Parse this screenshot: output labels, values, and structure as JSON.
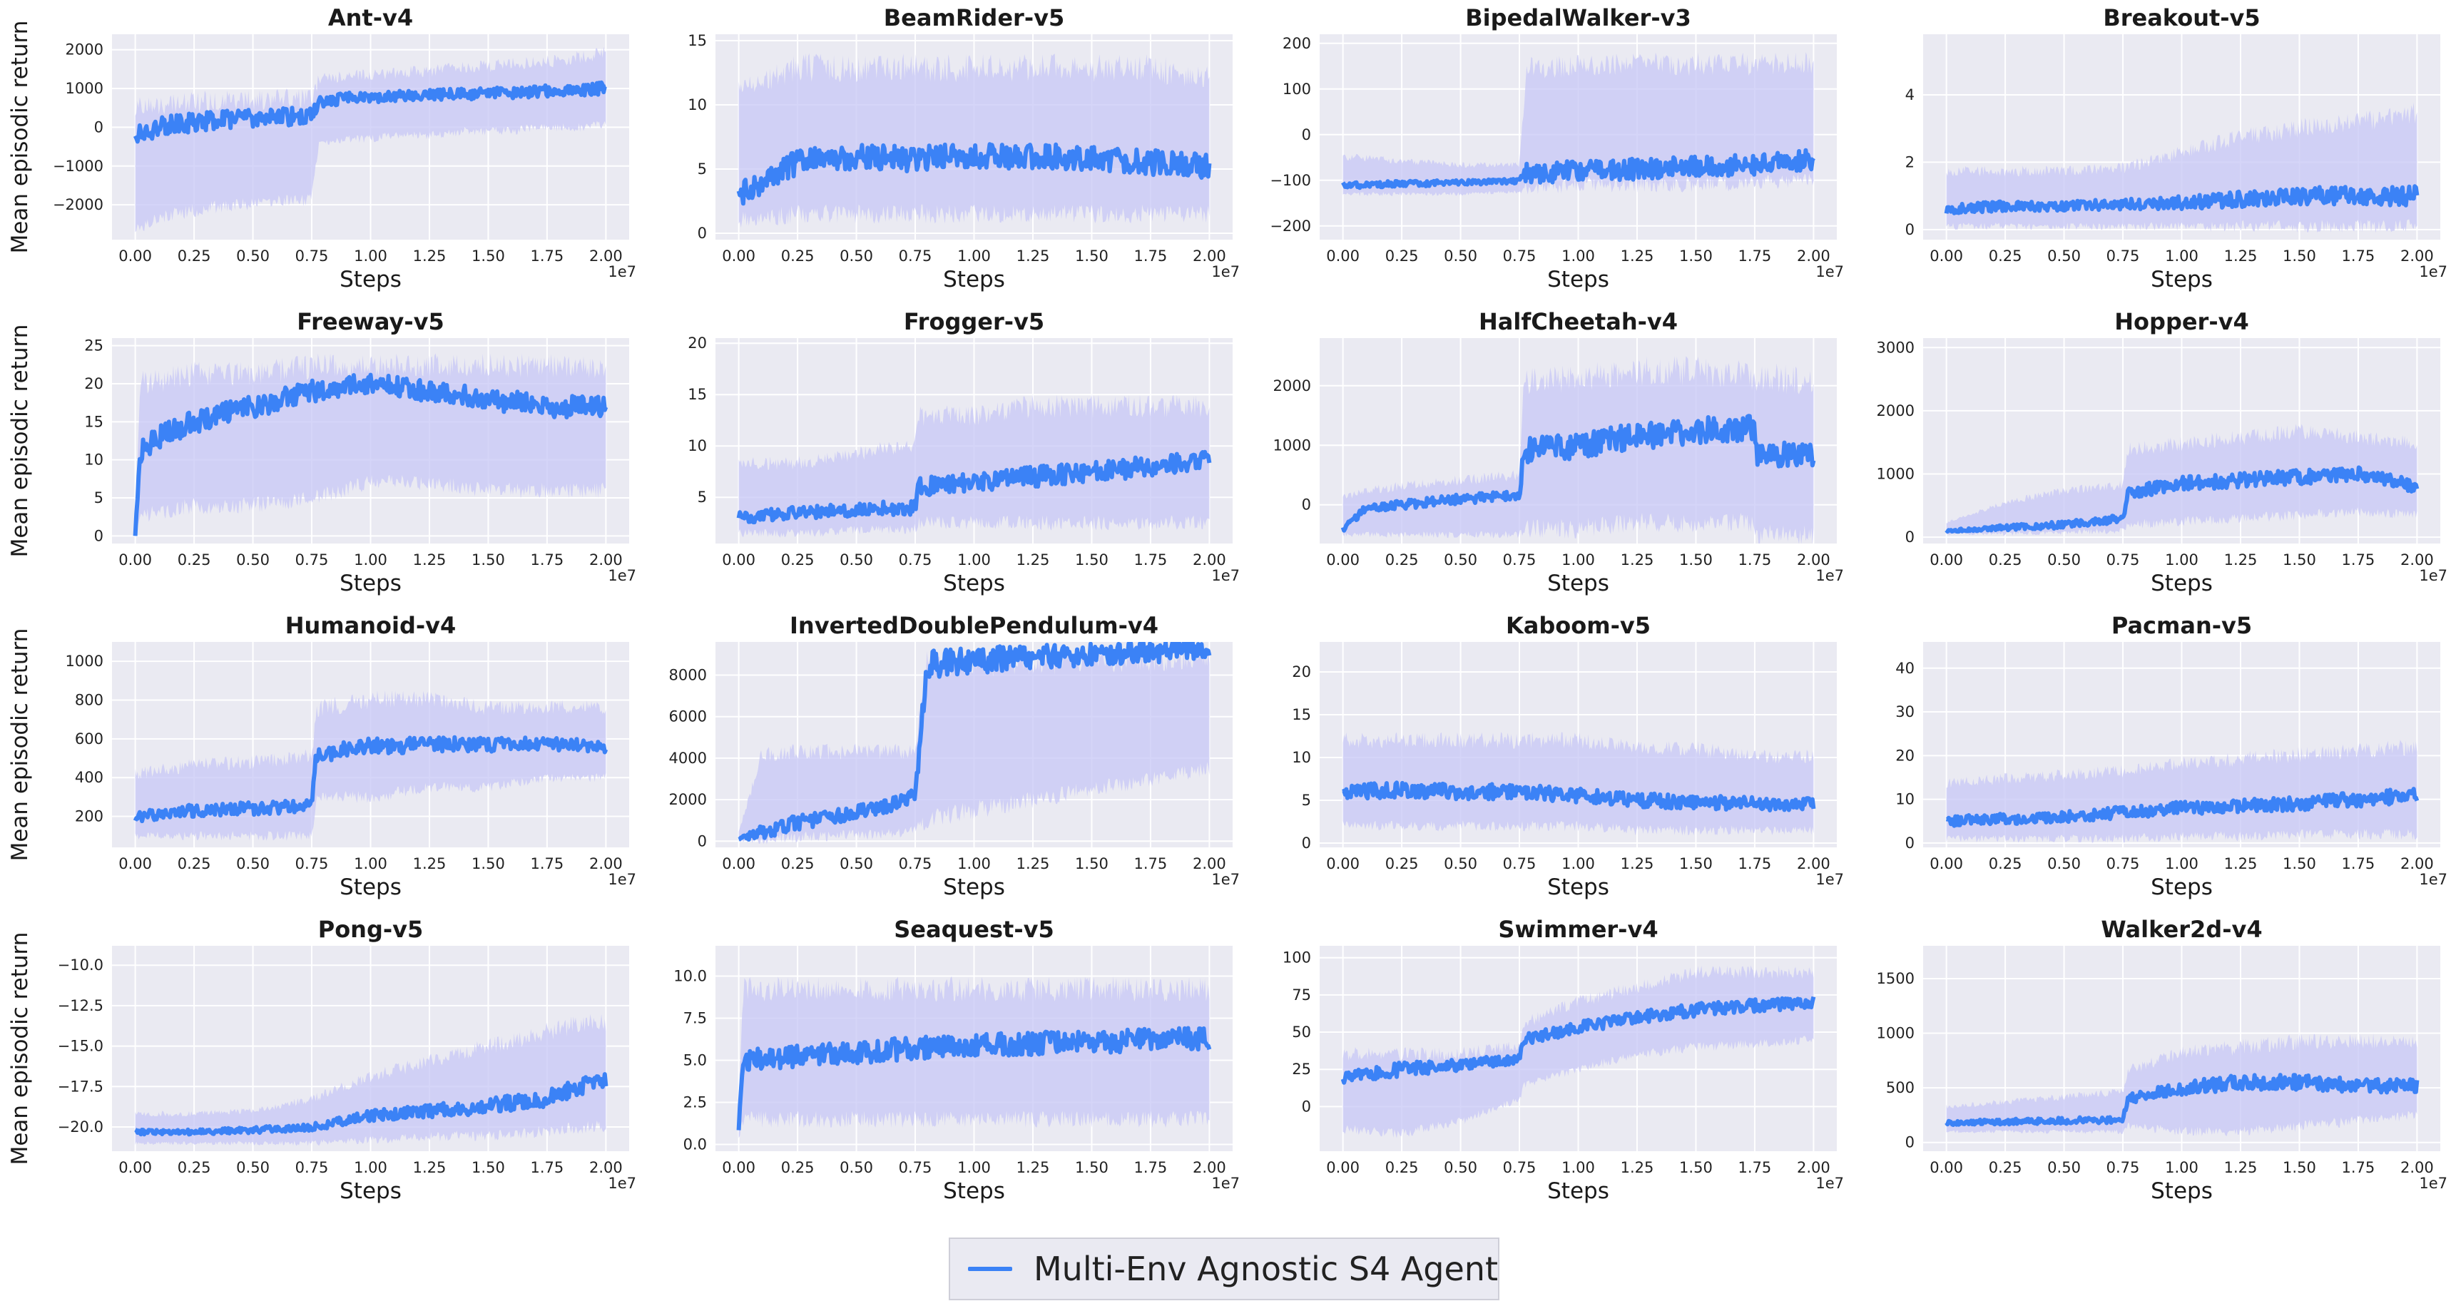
{
  "figure": {
    "xlabel": "Steps",
    "ylabel": "Mean episodic return",
    "x_exponent_label": "1e7",
    "legend_label": "Multi-Env Agnostic S4 Agent",
    "line_color": "#3b82f6",
    "band_color": "#c7c7f5",
    "panel_background": "#eaeaf2",
    "grid": true,
    "legend_placement": "bottom-center"
  },
  "chart_data": [
    {
      "type": "line",
      "title": "Ant-v4",
      "xlim": [
        0,
        2.0
      ],
      "ylim": [
        -2900,
        2400
      ],
      "yticks": [
        -2000,
        -1000,
        0,
        1000,
        2000
      ],
      "xticks": [
        0.0,
        0.25,
        0.5,
        0.75,
        1.0,
        1.25,
        1.5,
        1.75,
        2.0
      ],
      "x": [
        0,
        0.1,
        0.2,
        0.3,
        0.4,
        0.5,
        0.6,
        0.7,
        0.75,
        0.78,
        0.9,
        1.0,
        1.1,
        1.2,
        1.3,
        1.4,
        1.5,
        1.6,
        1.7,
        1.8,
        1.9,
        2.0
      ],
      "mean": [
        -200,
        0,
        100,
        150,
        200,
        250,
        270,
        280,
        300,
        650,
        750,
        780,
        800,
        820,
        850,
        860,
        880,
        900,
        920,
        950,
        980,
        1000
      ],
      "lower": [
        -2600,
        -2300,
        -2200,
        -2100,
        -2000,
        -2000,
        -1900,
        -1900,
        -1800,
        -400,
        -300,
        -300,
        -200,
        -200,
        -200,
        -100,
        -100,
        -100,
        0,
        0,
        0,
        100
      ],
      "upper": [
        800,
        900,
        900,
        950,
        950,
        950,
        1000,
        1000,
        1000,
        1400,
        1500,
        1500,
        1550,
        1600,
        1650,
        1700,
        1750,
        1800,
        1850,
        1900,
        2000,
        2100
      ]
    },
    {
      "type": "line",
      "title": "BeamRider-v5",
      "xlim": [
        0,
        2.0
      ],
      "ylim": [
        -0.5,
        15.5
      ],
      "yticks": [
        0,
        5,
        10,
        15
      ],
      "xticks": [
        0.0,
        0.25,
        0.5,
        0.75,
        1.0,
        1.25,
        1.5,
        1.75,
        2.0
      ],
      "x": [
        0,
        0.25,
        0.5,
        0.75,
        1.0,
        1.25,
        1.5,
        1.75,
        2.0
      ],
      "mean": [
        3,
        5.5,
        6,
        5.8,
        6,
        6,
        5.8,
        5.5,
        5.2
      ],
      "lower": [
        1,
        1.5,
        1.5,
        1.5,
        1.5,
        1.5,
        1.5,
        1.5,
        1.5
      ],
      "upper": [
        12,
        14,
        14,
        14,
        14,
        14,
        14,
        14,
        13
      ]
    },
    {
      "type": "line",
      "title": "BipedalWalker-v3",
      "xlim": [
        0,
        2.0
      ],
      "ylim": [
        -230,
        220
      ],
      "yticks": [
        -200,
        -100,
        0,
        100,
        200
      ],
      "xticks": [
        0.0,
        0.25,
        0.5,
        0.75,
        1.0,
        1.25,
        1.5,
        1.75,
        2.0
      ],
      "x": [
        0,
        0.25,
        0.5,
        0.75,
        0.78,
        1.0,
        1.25,
        1.5,
        1.75,
        2.0
      ],
      "mean": [
        -110,
        -108,
        -105,
        -102,
        -85,
        -80,
        -75,
        -70,
        -65,
        -55
      ],
      "lower": [
        -130,
        -130,
        -130,
        -125,
        -115,
        -110,
        -110,
        -110,
        -105,
        -100
      ],
      "upper": [
        -40,
        -50,
        -60,
        -60,
        170,
        175,
        180,
        180,
        180,
        185
      ]
    },
    {
      "type": "line",
      "title": "Breakout-v5",
      "xlim": [
        0,
        2.0
      ],
      "ylim": [
        -0.3,
        5.8
      ],
      "yticks": [
        0,
        2,
        4
      ],
      "xticks": [
        0.0,
        0.25,
        0.5,
        0.75,
        1.0,
        1.25,
        1.5,
        1.75,
        2.0
      ],
      "x": [
        0,
        0.25,
        0.5,
        0.75,
        1.0,
        1.25,
        1.5,
        1.75,
        2.0
      ],
      "mean": [
        0.6,
        0.7,
        0.7,
        0.75,
        0.8,
        0.9,
        1.0,
        1.0,
        1.0
      ],
      "lower": [
        0.1,
        0.1,
        0.1,
        0.1,
        0.1,
        0.1,
        0.1,
        0.1,
        0.1
      ],
      "upper": [
        1.9,
        1.9,
        1.9,
        2.0,
        2.5,
        3.0,
        3.3,
        3.5,
        3.8
      ]
    },
    {
      "type": "line",
      "title": "Freeway-v5",
      "xlim": [
        0,
        2.0
      ],
      "ylim": [
        -1,
        26
      ],
      "yticks": [
        0,
        5,
        10,
        15,
        20,
        25
      ],
      "xticks": [
        0.0,
        0.25,
        0.5,
        0.75,
        1.0,
        1.25,
        1.5,
        1.75,
        2.0
      ],
      "x": [
        0,
        0.02,
        0.1,
        0.25,
        0.5,
        0.75,
        1.0,
        1.25,
        1.5,
        1.75,
        2.0
      ],
      "mean": [
        0,
        11,
        13,
        15,
        17,
        19,
        20,
        19,
        18,
        17,
        17
      ],
      "lower": [
        0,
        3,
        3,
        4,
        4,
        5,
        7,
        7,
        6,
        6,
        6
      ],
      "upper": [
        0,
        22,
        22,
        23,
        23,
        24,
        24,
        24,
        24,
        24,
        24
      ]
    },
    {
      "type": "line",
      "title": "Frogger-v5",
      "xlim": [
        0,
        2.0
      ],
      "ylim": [
        0.5,
        20.5
      ],
      "yticks": [
        5,
        10,
        15,
        20
      ],
      "xticks": [
        0.0,
        0.25,
        0.5,
        0.75,
        1.0,
        1.25,
        1.5,
        1.75,
        2.0
      ],
      "x": [
        0,
        0.25,
        0.5,
        0.75,
        0.76,
        1.0,
        1.25,
        1.5,
        1.75,
        2.0
      ],
      "mean": [
        3,
        3.5,
        3.8,
        4,
        6,
        6.5,
        7,
        7.5,
        8,
        8.5
      ],
      "lower": [
        1.5,
        1.5,
        1.8,
        2,
        2.5,
        2.5,
        2.5,
        2.5,
        2.5,
        2.5
      ],
      "upper": [
        9,
        9,
        10,
        11,
        14,
        14,
        15,
        15,
        15,
        15
      ]
    },
    {
      "type": "line",
      "title": "HalfCheetah-v4",
      "xlim": [
        0,
        2.0
      ],
      "ylim": [
        -650,
        2800
      ],
      "yticks": [
        0,
        1000,
        2000
      ],
      "xticks": [
        0.0,
        0.25,
        0.5,
        0.75,
        1.0,
        1.25,
        1.5,
        1.75,
        2.0
      ],
      "x": [
        0,
        0.1,
        0.25,
        0.5,
        0.75,
        0.77,
        1.0,
        1.25,
        1.5,
        1.75,
        1.76,
        2.0
      ],
      "mean": [
        -400,
        -50,
        0,
        100,
        150,
        900,
        1000,
        1150,
        1250,
        1300,
        900,
        800
      ],
      "lower": [
        -500,
        -500,
        -500,
        -500,
        -500,
        -400,
        -400,
        -300,
        -300,
        -300,
        -500,
        -500
      ],
      "upper": [
        200,
        300,
        400,
        500,
        600,
        2300,
        2400,
        2500,
        2500,
        2400,
        2400,
        2350
      ]
    },
    {
      "type": "line",
      "title": "Hopper-v4",
      "xlim": [
        0,
        2.0
      ],
      "ylim": [
        -100,
        3150
      ],
      "yticks": [
        0,
        1000,
        2000,
        3000
      ],
      "xticks": [
        0.0,
        0.25,
        0.5,
        0.75,
        1.0,
        1.25,
        1.5,
        1.75,
        2.0
      ],
      "x": [
        0,
        0.25,
        0.5,
        0.75,
        0.77,
        1.0,
        1.25,
        1.5,
        1.75,
        2.0
      ],
      "mean": [
        100,
        150,
        200,
        300,
        700,
        850,
        900,
        950,
        1000,
        800
      ],
      "lower": [
        50,
        50,
        80,
        100,
        200,
        250,
        300,
        350,
        400,
        350
      ],
      "upper": [
        250,
        600,
        800,
        900,
        1500,
        1600,
        1700,
        1800,
        1700,
        1600
      ]
    },
    {
      "type": "line",
      "title": "Humanoid-v4",
      "xlim": [
        0,
        2.0
      ],
      "ylim": [
        40,
        1100
      ],
      "yticks": [
        200,
        400,
        600,
        800,
        1000
      ],
      "xticks": [
        0.0,
        0.25,
        0.5,
        0.75,
        1.0,
        1.25,
        1.5,
        1.75,
        2.0
      ],
      "x": [
        0,
        0.25,
        0.5,
        0.75,
        0.77,
        1.0,
        1.25,
        1.5,
        1.75,
        2.0
      ],
      "mean": [
        200,
        230,
        240,
        250,
        520,
        560,
        570,
        570,
        575,
        560
      ],
      "lower": [
        100,
        100,
        100,
        100,
        300,
        300,
        350,
        350,
        400,
        400
      ],
      "upper": [
        450,
        500,
        520,
        550,
        800,
        850,
        850,
        800,
        800,
        800
      ]
    },
    {
      "type": "line",
      "title": "InvertedDoublePendulum-v4",
      "xlim": [
        0,
        2.0
      ],
      "ylim": [
        -300,
        9600
      ],
      "yticks": [
        0,
        2000,
        4000,
        6000,
        8000
      ],
      "xticks": [
        0.0,
        0.25,
        0.5,
        0.75,
        1.0,
        1.25,
        1.5,
        1.75,
        2.0
      ],
      "x": [
        0,
        0.1,
        0.25,
        0.5,
        0.7,
        0.75,
        0.8,
        1.0,
        1.25,
        1.5,
        1.75,
        2.0
      ],
      "mean": [
        100,
        400,
        900,
        1400,
        1900,
        2200,
        8500,
        8700,
        8900,
        9000,
        9100,
        9200
      ],
      "lower": [
        0,
        100,
        200,
        300,
        400,
        500,
        1000,
        1500,
        2000,
        2500,
        3000,
        3500
      ],
      "upper": [
        500,
        4600,
        4700,
        4700,
        4700,
        4800,
        9300,
        9300,
        9300,
        9300,
        9300,
        9300
      ]
    },
    {
      "type": "line",
      "title": "Kaboom-v5",
      "xlim": [
        0,
        2.0
      ],
      "ylim": [
        -0.5,
        23.5
      ],
      "yticks": [
        0,
        5,
        10,
        15,
        20
      ],
      "xticks": [
        0.0,
        0.25,
        0.5,
        0.75,
        1.0,
        1.25,
        1.5,
        1.75,
        2.0
      ],
      "x": [
        0,
        0.25,
        0.5,
        0.75,
        1.0,
        1.25,
        1.5,
        1.75,
        2.0
      ],
      "mean": [
        6,
        6.2,
        6,
        6,
        5.5,
        5,
        4.8,
        4.6,
        4.5
      ],
      "lower": [
        2,
        2,
        2,
        2,
        2,
        1.5,
        1.5,
        1.5,
        1.5
      ],
      "upper": [
        13,
        13,
        13,
        13,
        13,
        12,
        12,
        11,
        11
      ]
    },
    {
      "type": "line",
      "title": "Pacman-v5",
      "xlim": [
        0,
        2.0
      ],
      "ylim": [
        -1,
        46
      ],
      "yticks": [
        0,
        10,
        20,
        30,
        40
      ],
      "xticks": [
        0.0,
        0.25,
        0.5,
        0.75,
        1.0,
        1.25,
        1.5,
        1.75,
        2.0
      ],
      "x": [
        0,
        0.25,
        0.5,
        0.75,
        1.0,
        1.25,
        1.5,
        1.75,
        2.0
      ],
      "mean": [
        5,
        5.5,
        6,
        7,
        8,
        8.5,
        9,
        10,
        11
      ],
      "lower": [
        1,
        1,
        1,
        1,
        1.5,
        1.5,
        2,
        2,
        2
      ],
      "upper": [
        15,
        16,
        17,
        18,
        20,
        21,
        22,
        23,
        24
      ]
    },
    {
      "type": "line",
      "title": "Pong-v5",
      "xlim": [
        0,
        2.0
      ],
      "ylim": [
        -21.5,
        -8.8
      ],
      "yticks": [
        -20.0,
        -17.5,
        -15.0,
        -12.5,
        -10.0
      ],
      "xticks": [
        0.0,
        0.25,
        0.5,
        0.75,
        1.0,
        1.25,
        1.5,
        1.75,
        2.0
      ],
      "x": [
        0,
        0.25,
        0.5,
        0.75,
        1.0,
        1.25,
        1.5,
        1.75,
        1.9,
        2.0
      ],
      "mean": [
        -20.3,
        -20.3,
        -20.2,
        -20,
        -19.3,
        -19,
        -18.7,
        -18.2,
        -17.5,
        -17
      ],
      "lower": [
        -21,
        -21,
        -21,
        -21,
        -20.8,
        -20.6,
        -20.5,
        -20.3,
        -20,
        -20
      ],
      "upper": [
        -19,
        -19,
        -18.8,
        -18,
        -16.5,
        -15.5,
        -14.5,
        -13.5,
        -13,
        -13
      ]
    },
    {
      "type": "line",
      "title": "Seaquest-v5",
      "xlim": [
        0,
        2.0
      ],
      "ylim": [
        -0.4,
        11.8
      ],
      "yticks": [
        0.0,
        2.5,
        5.0,
        7.5,
        10.0
      ],
      "xticks": [
        0.0,
        0.25,
        0.5,
        0.75,
        1.0,
        1.25,
        1.5,
        1.75,
        2.0
      ],
      "x": [
        0,
        0.02,
        0.25,
        0.5,
        0.75,
        1.0,
        1.25,
        1.5,
        1.75,
        2.0
      ],
      "mean": [
        1,
        5,
        5.3,
        5.5,
        5.7,
        5.9,
        6,
        6.1,
        6.2,
        6.3
      ],
      "lower": [
        0.5,
        1.5,
        1.5,
        1.5,
        1.5,
        1.5,
        1.5,
        1.5,
        1.5,
        1.5
      ],
      "upper": [
        3,
        10,
        10,
        10,
        10,
        10,
        10,
        10,
        10,
        10
      ]
    },
    {
      "type": "line",
      "title": "Swimmer-v4",
      "xlim": [
        0,
        2.0
      ],
      "ylim": [
        -30,
        108
      ],
      "yticks": [
        0,
        25,
        50,
        75,
        100
      ],
      "xticks": [
        0.0,
        0.25,
        0.5,
        0.75,
        1.0,
        1.25,
        1.5,
        1.75,
        2.0
      ],
      "x": [
        0,
        0.25,
        0.5,
        0.75,
        0.77,
        1.0,
        1.25,
        1.5,
        1.75,
        2.0
      ],
      "mean": [
        20,
        25,
        28,
        32,
        45,
        53,
        60,
        65,
        68,
        70
      ],
      "lower": [
        -15,
        -18,
        -10,
        5,
        15,
        25,
        35,
        40,
        42,
        45
      ],
      "upper": [
        40,
        40,
        40,
        45,
        60,
        75,
        85,
        95,
        95,
        95
      ]
    },
    {
      "type": "line",
      "title": "Walker2d-v4",
      "xlim": [
        0,
        2.0
      ],
      "ylim": [
        -80,
        1800
      ],
      "yticks": [
        0,
        500,
        1000,
        1500
      ],
      "xticks": [
        0.0,
        0.25,
        0.5,
        0.75,
        1.0,
        1.25,
        1.5,
        1.75,
        2.0
      ],
      "x": [
        0,
        0.25,
        0.5,
        0.75,
        0.77,
        1.0,
        1.25,
        1.5,
        1.75,
        2.0
      ],
      "mean": [
        180,
        190,
        200,
        210,
        400,
        500,
        550,
        550,
        520,
        520
      ],
      "lower": [
        100,
        100,
        100,
        100,
        150,
        100,
        100,
        150,
        200,
        250
      ],
      "upper": [
        350,
        400,
        450,
        500,
        700,
        900,
        950,
        1000,
        1000,
        1000
      ]
    }
  ]
}
